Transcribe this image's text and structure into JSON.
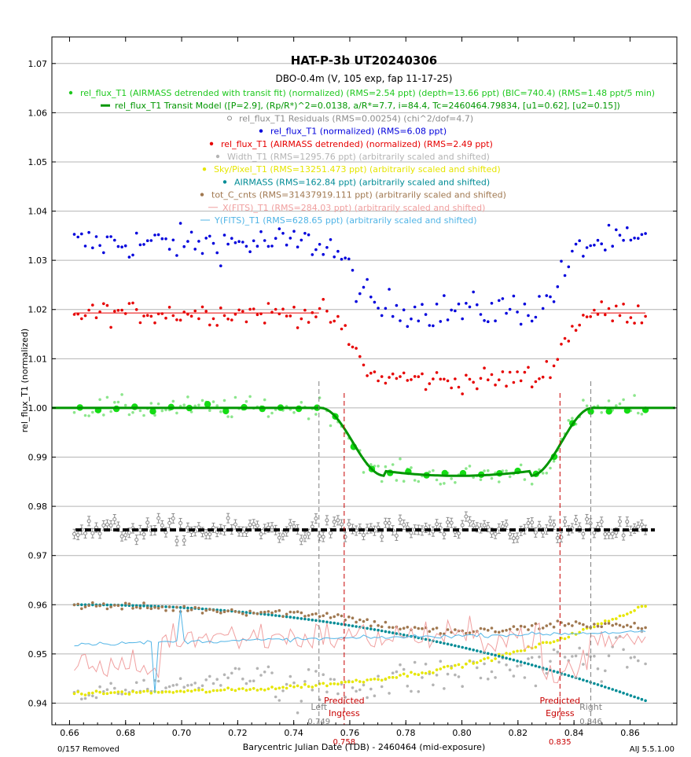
{
  "chart_data": {
    "type": "scatter",
    "title": "HAT-P-3b  UT20240306",
    "subtitle": "DBO-0.4m (V, 105 exp, fap 11-17-25)",
    "xlabel": "Barycentric Julian Date (TDB) - 2460464 (mid-exposure)",
    "ylabel": "rel_flux_T1 (normalized)",
    "xlim": [
      0.6537,
      0.8767
    ],
    "ylim": [
      0.9356,
      1.0754
    ],
    "x_ticks": [
      "0.66",
      "0.68",
      "0.70",
      "0.72",
      "0.74",
      "0.76",
      "0.78",
      "0.80",
      "0.82",
      "0.84",
      "0.86"
    ],
    "y_ticks": [
      "0.94",
      "0.95",
      "0.96",
      "0.97",
      "0.98",
      "0.99",
      "1.00",
      "1.01",
      "1.02",
      "1.03",
      "1.04",
      "1.05",
      "1.06",
      "1.07"
    ],
    "legend": [
      {
        "text": "rel_flux_T1 (AIRMASS detrended with transit fit) (normalized) (RMS=2.54 ppt) (depth=13.66 ppt) (BIC=740.4) (RMS=1.48 ppt/5 min)",
        "color": "#1ec81e",
        "marker": "dot"
      },
      {
        "text": "rel_flux_T1 Transit Model ([P=2.9], (Rp/R*)^2=0.0138, a/R*=7.7, i=84.4, Tc=2460464.79834, [u1=0.62], [u2=0.15])",
        "color": "#009600",
        "marker": "line"
      },
      {
        "text": "rel_flux_T1 Residuals (RMS=0.00254) (chi^2/dof=4.7)",
        "color": "#8c8c8c",
        "marker": "ring"
      },
      {
        "text": "rel_flux_T1 (normalized) (RMS=6.08 ppt)",
        "color": "#0000dc",
        "marker": "dot"
      },
      {
        "text": "rel_flux_T1 (AIRMASS detrended) (normalized) (RMS=2.49 ppt)",
        "color": "#e60000",
        "marker": "dot"
      },
      {
        "text": "Width_T1 (RMS=1295.76 ppt) (arbitrarily scaled and shifted)",
        "color": "#b4b4b4",
        "marker": "dot"
      },
      {
        "text": "Sky/Pixel_T1 (RMS=13251.473 ppt) (arbitrarily scaled and shifted)",
        "color": "#e6e600",
        "marker": "dot"
      },
      {
        "text": "AIRMASS (RMS=162.84 ppt) (arbitrarily scaled and shifted)",
        "color": "#008c96",
        "marker": "dot"
      },
      {
        "text": "tot_C_cnts (RMS=31437919.111 ppt) (arbitrarily scaled and shifted)",
        "color": "#a07850",
        "marker": "dot"
      },
      {
        "text": "X(FITS)_T1 (RMS=284.03 ppt) (arbitrarily scaled and shifted)",
        "color": "#f0a0a0",
        "marker": "line"
      },
      {
        "text": "Y(FITS)_T1 (RMS=628.65 ppt) (arbitrarily scaled and shifted)",
        "color": "#50b4e6",
        "marker": "line"
      }
    ],
    "markers": [
      {
        "label": "Left",
        "value": "0.749",
        "x": 0.749,
        "color": "#808080",
        "style": "dashed"
      },
      {
        "label": "Predicted Ingress",
        "value": "0.758",
        "x": 0.758,
        "color": "#c80000",
        "style": "dashed"
      },
      {
        "label": "Predicted Egress",
        "value": "0.835",
        "x": 0.835,
        "color": "#c80000",
        "style": "dashed"
      },
      {
        "label": "Right",
        "value": "0.846",
        "x": 0.846,
        "color": "#808080",
        "style": "dashed"
      }
    ],
    "transit_model": {
      "baseline": 1.0,
      "depth": 0.0138,
      "t1": 0.7495,
      "t2": 0.7725,
      "t3": 0.8245,
      "t4": 0.8467,
      "t_start": 0.6537,
      "t_end": 0.8767
    },
    "series": [
      {
        "name": "rel_flux_T1 (normalized)",
        "type": "scatter",
        "color": "#0000dc",
        "x_range": [
          0.6617,
          0.8655
        ],
        "n": 157,
        "profile": "transit",
        "baseline": 1.0335,
        "depth": 0.0138,
        "noise": 0.0035
      },
      {
        "name": "rel_flux_T1 (AIRMASS detrended)",
        "type": "scatter",
        "color": "#e60000",
        "x_range": [
          0.6617,
          0.8655
        ],
        "n": 157,
        "profile": "transit",
        "baseline": 1.0193,
        "depth": 0.0138,
        "noise": 0.0023
      },
      {
        "name": "rel_flux_T1 (AIRMASS detrended with transit fit)",
        "type": "scatter",
        "color": "#1ec81e",
        "x_range": [
          0.6617,
          0.8655
        ],
        "n": 157,
        "profile": "transit",
        "baseline": 1.0,
        "depth": 0.0138,
        "noise": 0.0022
      },
      {
        "name": "rel_flux_T1 binned",
        "type": "scatter",
        "color": "#14dc14",
        "x_range": [
          0.6637,
          0.8655
        ],
        "n": 32,
        "profile": "transit",
        "baseline": 1.0,
        "depth": 0.0138,
        "noise": 0.0009
      },
      {
        "name": "rel_flux_T1 Residuals",
        "type": "scatter",
        "color": "#8c8c8c",
        "x_range": [
          0.6617,
          0.8655
        ],
        "n": 157,
        "profile": "flat",
        "baseline": 0.9752,
        "noise": 0.0022
      },
      {
        "name": "Width_T1",
        "type": "scatter",
        "color": "#b4b4b4",
        "x_range": [
          0.6617,
          0.8655
        ],
        "n": 157,
        "profile": "width",
        "baseline": 0.945,
        "noise": 0.004
      },
      {
        "name": "Sky/Pixel_T1",
        "type": "scatter",
        "color": "#e6e600",
        "x_range": [
          0.6617,
          0.8655
        ],
        "n": 157,
        "profile": "sky",
        "start": 0.942,
        "end": 0.96,
        "noise": 0.0004
      },
      {
        "name": "AIRMASS",
        "type": "scatter",
        "color": "#008c96",
        "x_range": [
          0.6617,
          0.8655
        ],
        "n": 157,
        "profile": "airmass",
        "start": 0.96,
        "end": 0.9405
      },
      {
        "name": "tot_C_cnts",
        "type": "scatter",
        "color": "#a07850",
        "x_range": [
          0.6617,
          0.8655
        ],
        "n": 157,
        "profile": "counts",
        "start": 0.96,
        "end": 0.9555,
        "noise": 0.0008
      },
      {
        "name": "X(FITS)_T1",
        "type": "line",
        "color": "#f0a0a0",
        "x_range": [
          0.6617,
          0.8655
        ],
        "n": 157,
        "profile": "xfits",
        "baseline": 0.9535,
        "noise": 0.0025
      },
      {
        "name": "Y(FITS)_T1",
        "type": "line",
        "color": "#50b4e6",
        "x_range": [
          0.6617,
          0.8655
        ],
        "n": 157,
        "profile": "yfits",
        "start": 0.952,
        "end": 0.9545,
        "noise": 0.0004
      }
    ]
  },
  "footer": {
    "removed": "0/157 Removed",
    "version": "AIJ 5.5.1.00"
  }
}
